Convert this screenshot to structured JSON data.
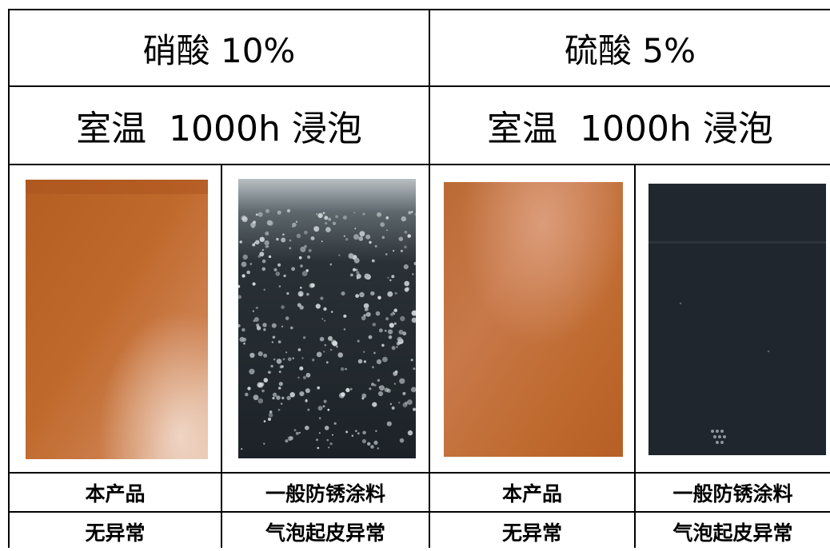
{
  "columns": [
    {
      "header": "硝酸 10%",
      "condition": "室温  1000h 浸泡",
      "samples": [
        {
          "name": "本产品",
          "result": "无异常",
          "image": "copper-panel-smooth"
        },
        {
          "name": "一般防锈涂料",
          "result": "气泡起皮异常",
          "image": "black-panel-heavy-blisters"
        }
      ]
    },
    {
      "header": "硫酸 5%",
      "condition": "室温  1000h 浸泡",
      "samples": [
        {
          "name": "本产品",
          "result": "无异常",
          "image": "copper-panel-smooth"
        },
        {
          "name": "一般防锈涂料",
          "result": "气泡起皮异常",
          "image": "black-panel-few-blisters"
        }
      ]
    }
  ]
}
